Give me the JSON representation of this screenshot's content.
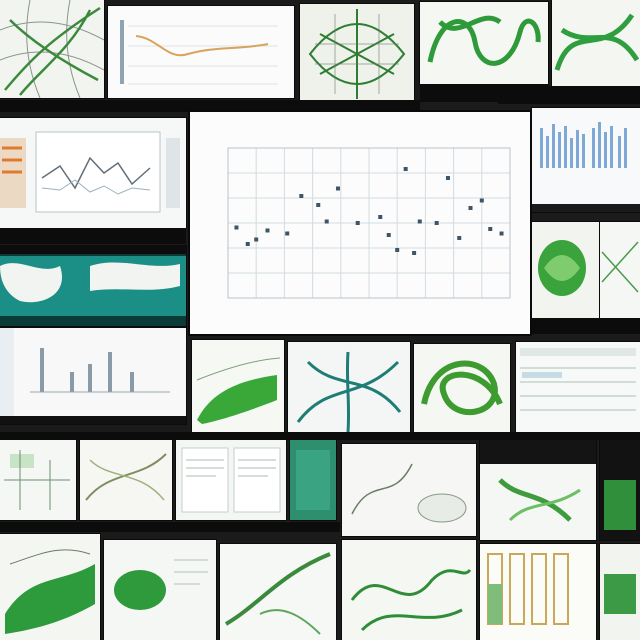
{
  "collage": {
    "big_chart_title": "",
    "big_chart_xlabel": "",
    "header_badge": ""
  },
  "chart_data": {
    "type": "scatter",
    "title": "",
    "xlabel": "",
    "ylabel": "",
    "xlim": [
      0,
      10
    ],
    "ylim": [
      0,
      10
    ],
    "grid": true,
    "points": [
      {
        "x": 0.3,
        "y": 4.7
      },
      {
        "x": 0.7,
        "y": 3.6
      },
      {
        "x": 1.4,
        "y": 4.5
      },
      {
        "x": 2.1,
        "y": 4.3
      },
      {
        "x": 2.6,
        "y": 6.8
      },
      {
        "x": 3.2,
        "y": 6.2
      },
      {
        "x": 3.5,
        "y": 5.1
      },
      {
        "x": 3.9,
        "y": 7.3
      },
      {
        "x": 4.6,
        "y": 5.0
      },
      {
        "x": 5.4,
        "y": 5.4
      },
      {
        "x": 6.0,
        "y": 3.2
      },
      {
        "x": 6.3,
        "y": 8.6
      },
      {
        "x": 6.8,
        "y": 5.1
      },
      {
        "x": 7.4,
        "y": 5.0
      },
      {
        "x": 7.8,
        "y": 8.0
      },
      {
        "x": 8.2,
        "y": 4.0
      },
      {
        "x": 8.6,
        "y": 6.0
      },
      {
        "x": 9.0,
        "y": 6.5
      },
      {
        "x": 9.3,
        "y": 4.6
      },
      {
        "x": 5.7,
        "y": 4.2
      },
      {
        "x": 9.7,
        "y": 4.3
      },
      {
        "x": 6.6,
        "y": 3.0
      },
      {
        "x": 1.0,
        "y": 3.9
      }
    ]
  }
}
